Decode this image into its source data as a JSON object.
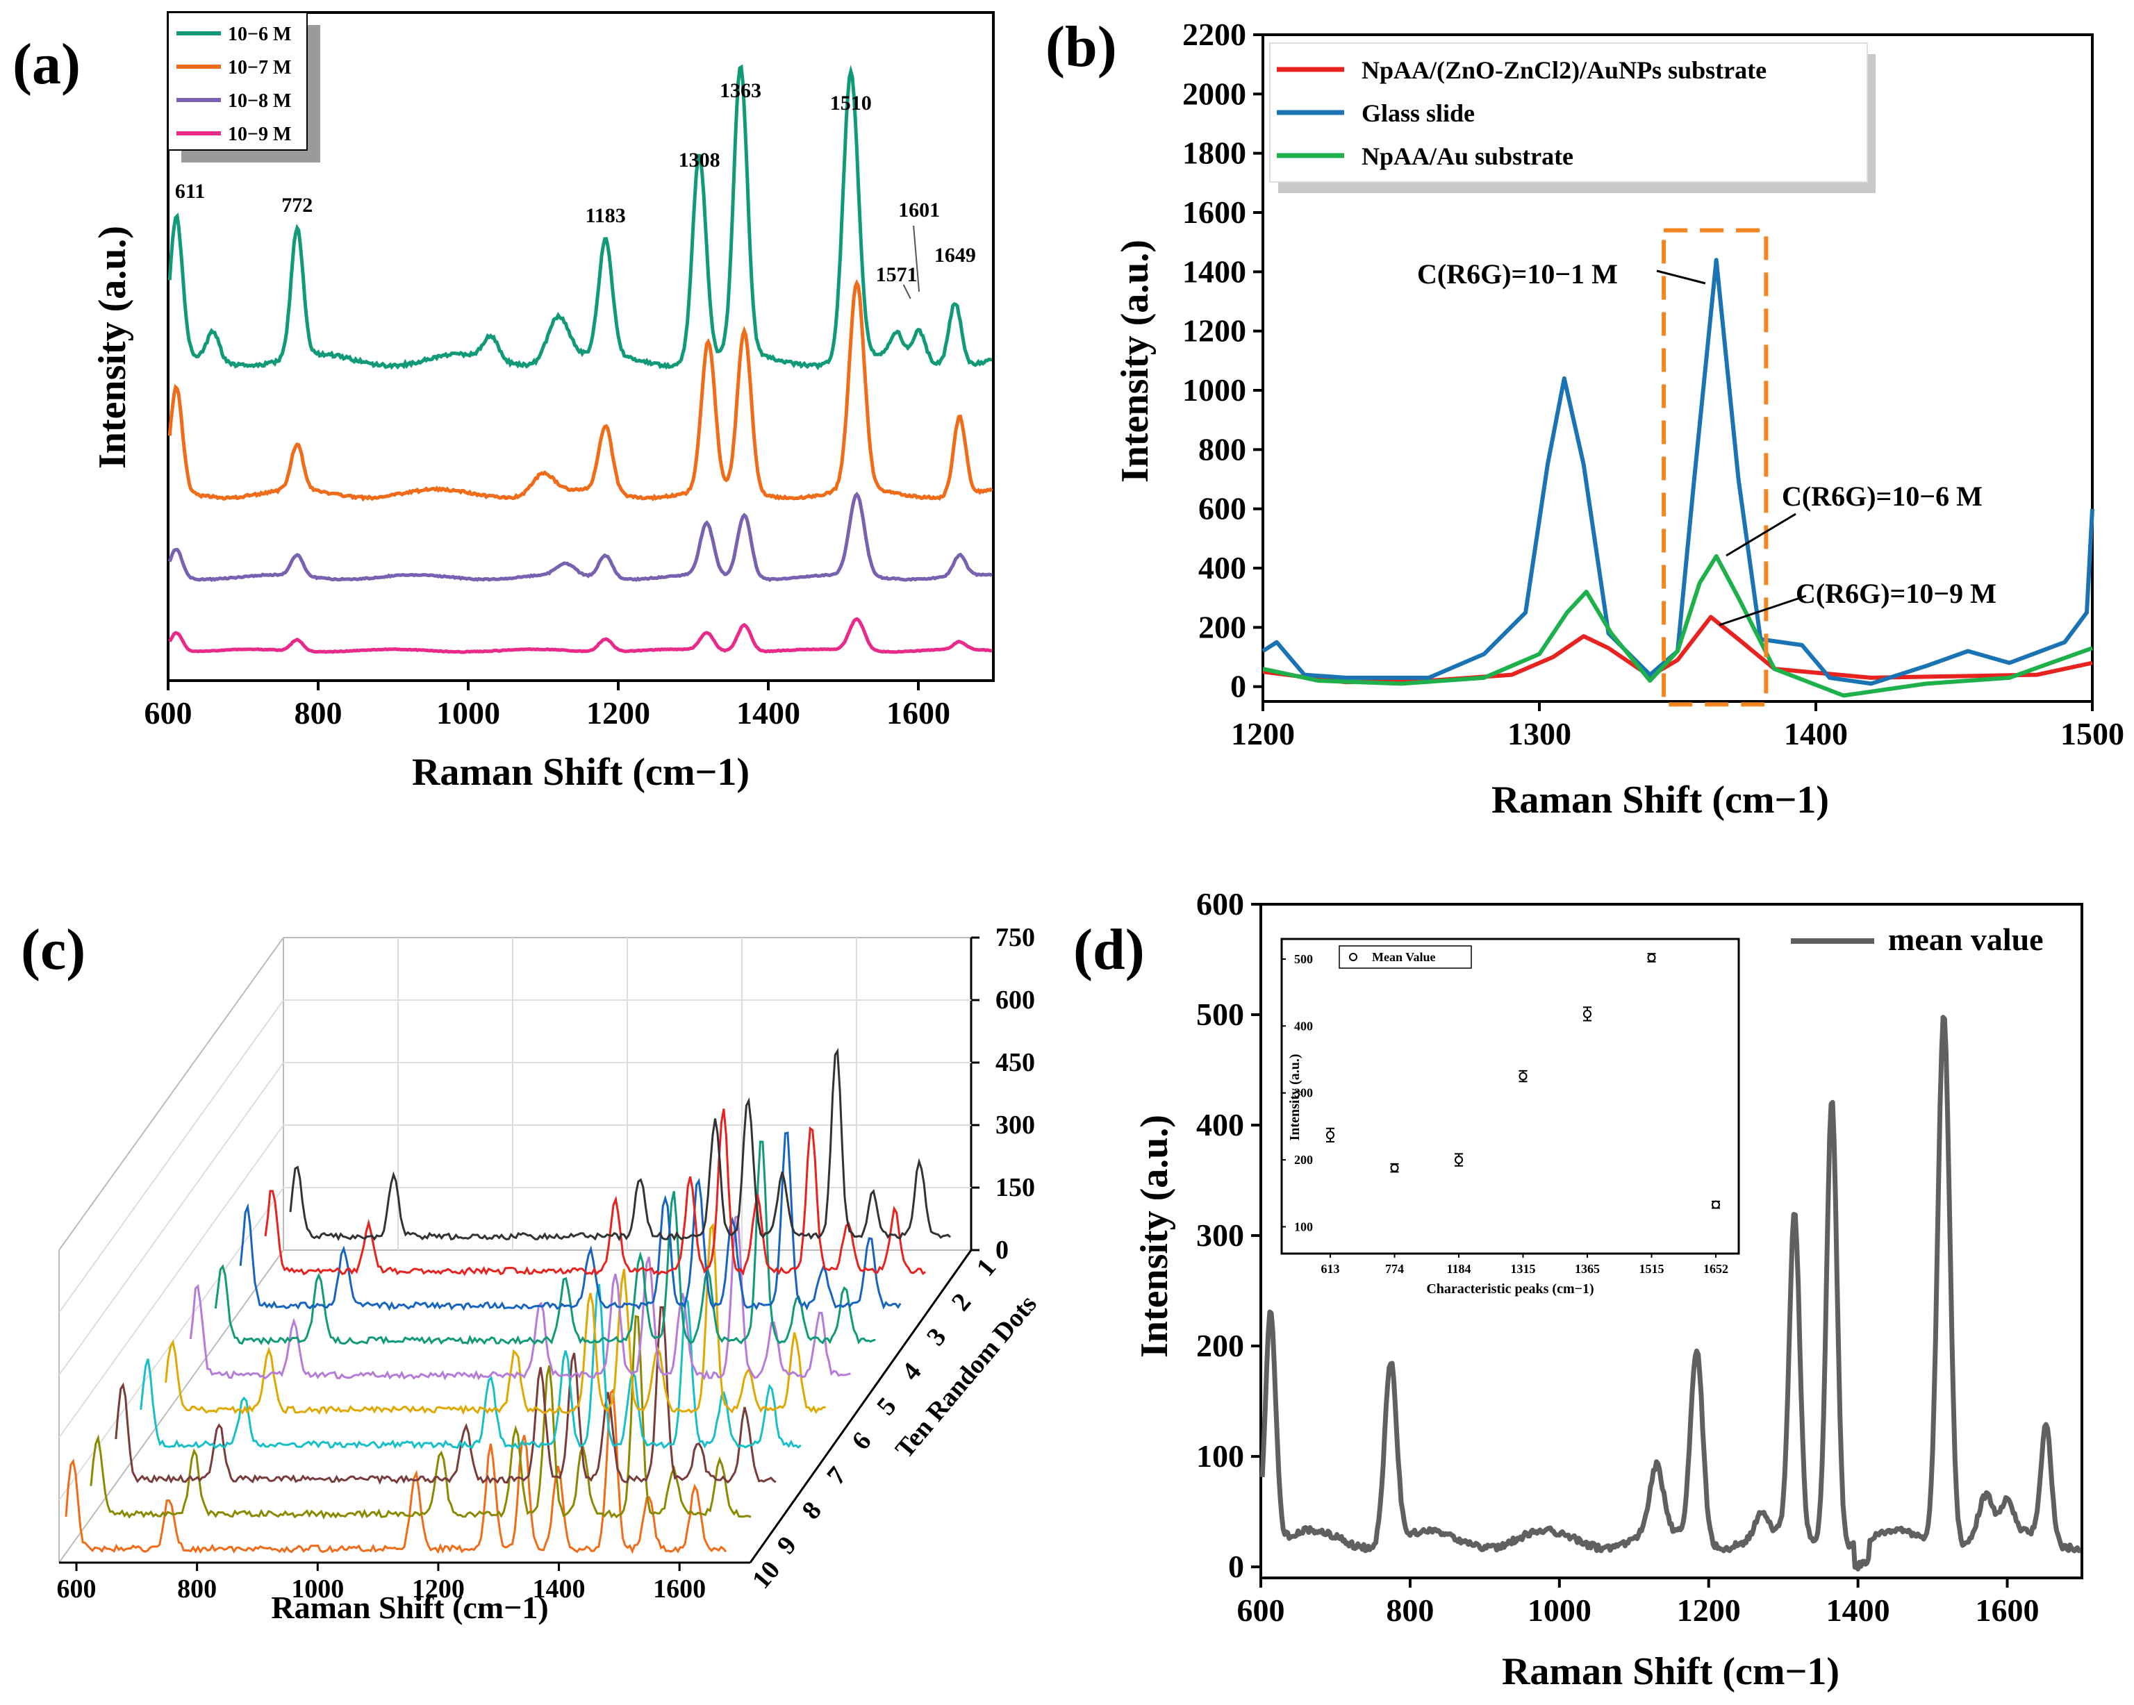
{
  "chart_data": [
    {
      "id": "a",
      "panel_label": "(a)",
      "type": "line",
      "xlabel": "Raman Shift (cm−1)",
      "ylabel": "Intensity (a.u.)",
      "xlim": [
        600,
        1700
      ],
      "xticks": [
        "600",
        "800",
        "1000",
        "1200",
        "1400",
        "1600"
      ],
      "yticks_shown": false,
      "series": [
        {
          "name": "10−6 M",
          "color": "#119a77",
          "baseline": 0.48,
          "scale": 1.0,
          "peaks": [
            [
              611,
              0.48,
              8
            ],
            [
              660,
              0.1,
              8
            ],
            [
              772,
              0.45,
              8
            ],
            [
              1030,
              0.08,
              10
            ],
            [
              1120,
              0.16,
              14
            ],
            [
              1183,
              0.4,
              9
            ],
            [
              1308,
              0.72,
              9
            ],
            [
              1363,
              1.0,
              9
            ],
            [
              1510,
              1.0,
              10
            ],
            [
              1571,
              0.08,
              8
            ],
            [
              1601,
              0.1,
              8
            ],
            [
              1649,
              0.22,
              8
            ]
          ]
        },
        {
          "name": "10−7 M",
          "color": "#f06c19",
          "baseline": 0.28,
          "scale": 0.72,
          "peaks": [
            [
              611,
              0.5,
              8
            ],
            [
              772,
              0.22,
              8
            ],
            [
              1100,
              0.1,
              14
            ],
            [
              1183,
              0.32,
              9
            ],
            [
              1320,
              0.72,
              9
            ],
            [
              1368,
              0.78,
              9
            ],
            [
              1518,
              1.0,
              10
            ],
            [
              1655,
              0.38,
              8
            ]
          ]
        },
        {
          "name": "10−8 M",
          "color": "#7761b0",
          "baseline": 0.155,
          "scale": 0.4,
          "peaks": [
            [
              611,
              0.25,
              8
            ],
            [
              772,
              0.18,
              8
            ],
            [
              1130,
              0.1,
              12
            ],
            [
              1183,
              0.2,
              9
            ],
            [
              1318,
              0.45,
              9
            ],
            [
              1368,
              0.55,
              9
            ],
            [
              1518,
              0.7,
              10
            ],
            [
              1655,
              0.18,
              8
            ]
          ]
        },
        {
          "name": "10−9 M",
          "color": "#ea2a8b",
          "baseline": 0.045,
          "scale": 0.22,
          "peaks": [
            [
              611,
              0.3,
              8
            ],
            [
              772,
              0.18,
              8
            ],
            [
              1183,
              0.2,
              9
            ],
            [
              1318,
              0.28,
              9
            ],
            [
              1368,
              0.42,
              9
            ],
            [
              1518,
              0.5,
              10
            ],
            [
              1655,
              0.12,
              8
            ]
          ]
        }
      ],
      "peak_labels": [
        "611",
        "772",
        "1183",
        "1308",
        "1363",
        "1510",
        "1571",
        "1601",
        "1649"
      ]
    },
    {
      "id": "b",
      "panel_label": "(b)",
      "type": "line",
      "xlabel": "Raman Shift (cm−1)",
      "ylabel": "Intensity (a.u.)",
      "xlim": [
        1200,
        1500
      ],
      "ylim": [
        -50,
        2200
      ],
      "xticks": [
        "1200",
        "1300",
        "1400",
        "1500"
      ],
      "yticks": [
        "0",
        "200",
        "400",
        "600",
        "800",
        "1000",
        "1200",
        "1400",
        "1600",
        "1800",
        "2000",
        "2200"
      ],
      "series": [
        {
          "name": "NpAA/(ZnO-ZnCl2)/AuNPs substrate",
          "color": "#e8221f",
          "points": [
            [
              1200,
              50
            ],
            [
              1230,
              15
            ],
            [
              1260,
              20
            ],
            [
              1290,
              40
            ],
            [
              1305,
              100
            ],
            [
              1316,
              170
            ],
            [
              1325,
              130
            ],
            [
              1340,
              35
            ],
            [
              1350,
              90
            ],
            [
              1362,
              235
            ],
            [
              1372,
              160
            ],
            [
              1385,
              60
            ],
            [
              1420,
              30
            ],
            [
              1450,
              35
            ],
            [
              1480,
              40
            ],
            [
              1500,
              80
            ]
          ]
        },
        {
          "name": "Glass slide",
          "color": "#1a74b3",
          "points": [
            [
              1200,
              120
            ],
            [
              1205,
              150
            ],
            [
              1215,
              40
            ],
            [
              1230,
              30
            ],
            [
              1260,
              30
            ],
            [
              1280,
              110
            ],
            [
              1295,
              250
            ],
            [
              1303,
              750
            ],
            [
              1309,
              1040
            ],
            [
              1316,
              750
            ],
            [
              1325,
              180
            ],
            [
              1340,
              40
            ],
            [
              1350,
              120
            ],
            [
              1356,
              700
            ],
            [
              1364,
              1440
            ],
            [
              1372,
              700
            ],
            [
              1380,
              160
            ],
            [
              1395,
              140
            ],
            [
              1405,
              30
            ],
            [
              1420,
              10
            ],
            [
              1440,
              70
            ],
            [
              1455,
              120
            ],
            [
              1470,
              80
            ],
            [
              1490,
              150
            ],
            [
              1498,
              250
            ],
            [
              1500,
              600
            ]
          ]
        },
        {
          "name": "NpAA/Au substrate",
          "color": "#1eb04a",
          "points": [
            [
              1200,
              60
            ],
            [
              1220,
              20
            ],
            [
              1250,
              10
            ],
            [
              1280,
              30
            ],
            [
              1300,
              110
            ],
            [
              1310,
              250
            ],
            [
              1317,
              320
            ],
            [
              1326,
              180
            ],
            [
              1340,
              20
            ],
            [
              1350,
              120
            ],
            [
              1358,
              350
            ],
            [
              1364,
              440
            ],
            [
              1372,
              300
            ],
            [
              1385,
              60
            ],
            [
              1410,
              -30
            ],
            [
              1440,
              10
            ],
            [
              1470,
              30
            ],
            [
              1500,
              130
            ]
          ]
        }
      ],
      "legend": [
        "NpAA/(ZnO-ZnCl2)/AuNPs substrate",
        "Glass slide",
        "NpAA/Au substrate"
      ],
      "annotations": [
        "C(R6G)=10−1 M",
        "C(R6G)=10−6 M",
        "C(R6G)=10−9 M"
      ],
      "highlight_box_x": [
        1345,
        1382
      ]
    },
    {
      "id": "c",
      "panel_label": "(c)",
      "type": "line",
      "subtype": "waterfall",
      "xlabel": "Raman Shift (cm−1)",
      "zlabel": "Ten Random Dots",
      "xlim": [
        600,
        1700
      ],
      "xticks": [
        "600",
        "800",
        "1000",
        "1200",
        "1400",
        "1600"
      ],
      "yticks": [
        "0",
        "150",
        "300",
        "450",
        "600",
        "750"
      ],
      "zticks": [
        "1",
        "2",
        "3",
        "4",
        "5",
        "6",
        "7",
        "8",
        "9",
        "10"
      ],
      "series_colors": [
        "#333333",
        "#e8221f",
        "#1565c0",
        "#119a77",
        "#b57bd8",
        "#e0a800",
        "#17c0c8",
        "#7a3b3b",
        "#8a8a00",
        "#f06c19"
      ],
      "peak_positions": [
        611,
        772,
        1183,
        1308,
        1363,
        1510,
        1571,
        1649
      ]
    },
    {
      "id": "d",
      "panel_label": "(d)",
      "type": "line",
      "xlabel": "Raman Shift (cm−1)",
      "ylabel": "Intensity (a.u.)",
      "xlim": [
        600,
        1700
      ],
      "ylim": [
        -10,
        600
      ],
      "xticks": [
        "600",
        "800",
        "1000",
        "1200",
        "1400",
        "1600"
      ],
      "yticks": [
        "0",
        "100",
        "200",
        "300",
        "400",
        "500",
        "600"
      ],
      "legend": [
        "mean value"
      ],
      "series_color": "#606060",
      "peaks": [
        [
          613,
          210,
          7
        ],
        [
          774,
          165,
          8
        ],
        [
          1130,
          60,
          9
        ],
        [
          1184,
          175,
          8
        ],
        [
          1270,
          20,
          8
        ],
        [
          1315,
          290,
          7
        ],
        [
          1365,
          405,
          7
        ],
        [
          1515,
          480,
          8
        ],
        [
          1571,
          40,
          10
        ],
        [
          1600,
          30,
          8
        ],
        [
          1652,
          105,
          7
        ]
      ],
      "baseline": 25,
      "inset": {
        "type": "scatter",
        "xlabel": "Characteristic peaks (cm−1)",
        "ylabel": "Intensity (a.u.)",
        "legend": "Mean Value",
        "categories": [
          "613",
          "774",
          "1184",
          "1315",
          "1365",
          "1515",
          "1652"
        ],
        "values": [
          237,
          188,
          200,
          325,
          418,
          502,
          133
        ],
        "errors": [
          10,
          6,
          9,
          8,
          10,
          6,
          5
        ],
        "yticks": [
          "100",
          "200",
          "300",
          "400",
          "500"
        ],
        "ylim": [
          60,
          530
        ]
      }
    }
  ]
}
